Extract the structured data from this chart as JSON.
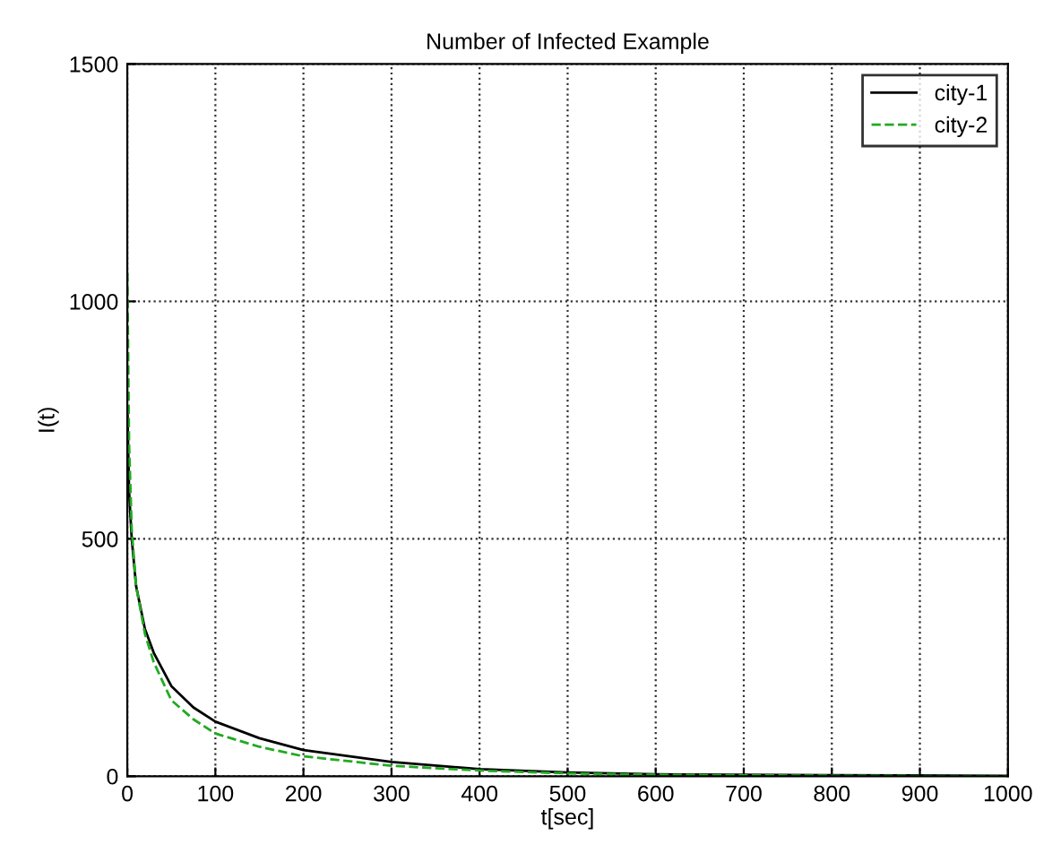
{
  "chart_data": {
    "type": "line",
    "title": "Number of Infected Example",
    "xlabel": "t[sec]",
    "ylabel": "I(t)",
    "xlim": [
      0,
      1000
    ],
    "xticks": [
      0,
      100,
      200,
      300,
      400,
      500,
      600,
      700,
      800,
      900,
      1000
    ],
    "ylim": [
      0,
      1500
    ],
    "yticks": [
      0,
      500,
      1000,
      1500
    ],
    "grid": true,
    "legend": "top right",
    "series": [
      {
        "name": "city-1",
        "color": "#000000",
        "line_style": "solid",
        "x": [
          0,
          2,
          5,
          10,
          20,
          30,
          50,
          75,
          100,
          150,
          200,
          300,
          400,
          500,
          600,
          800,
          1000
        ],
        "values": [
          780,
          600,
          500,
          400,
          310,
          260,
          190,
          145,
          115,
          80,
          55,
          30,
          15,
          8,
          4,
          2,
          1
        ]
      },
      {
        "name": "city-2",
        "color": "#22aa22",
        "line_style": "dashed",
        "x": [
          0,
          2,
          5,
          10,
          20,
          30,
          50,
          75,
          100,
          150,
          200,
          300,
          400,
          500,
          600,
          800,
          1000
        ],
        "values": [
          1060,
          700,
          520,
          400,
          300,
          240,
          160,
          120,
          90,
          62,
          42,
          22,
          12,
          6,
          3,
          1,
          0
        ]
      }
    ]
  }
}
